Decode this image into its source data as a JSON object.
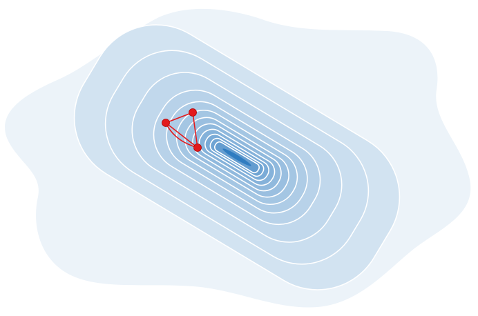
{
  "diagram": {
    "type": "contour-plot-with-simplex",
    "labels": [],
    "colors": {
      "outer_region": "#ecf3f9",
      "inner_core": "#2f7cc0",
      "contour_line": "#ffffff",
      "simplex": "#e41a1c",
      "vertex": "#e31a1c"
    },
    "contour_levels": 12,
    "simplex": {
      "vertex_count": 3
    }
  }
}
